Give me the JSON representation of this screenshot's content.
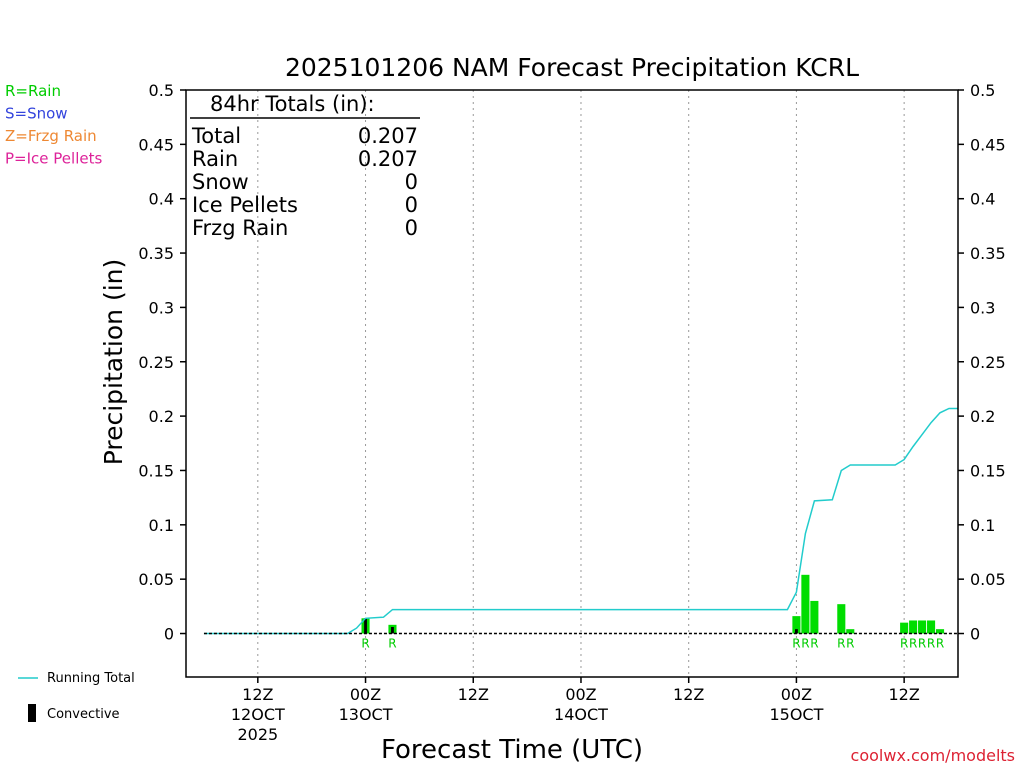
{
  "chart_data": {
    "type": "bar",
    "title": "2025101206 NAM Forecast Precipitation KCRL",
    "xlabel": "Forecast Time (UTC)",
    "ylabel": "Precipitation (in)",
    "ylim": [
      -0.04,
      0.5
    ],
    "y_ticks": [
      "0",
      "0.05",
      "0.1",
      "0.15",
      "0.2",
      "0.25",
      "0.3",
      "0.35",
      "0.4",
      "0.45",
      "0.5"
    ],
    "x_range_hours": [
      -2,
      84
    ],
    "x_ticks": [
      {
        "hour": 6,
        "l1": "12Z",
        "l2": "12OCT",
        "l3": "2025"
      },
      {
        "hour": 18,
        "l1": "00Z",
        "l2": "13OCT",
        "l3": ""
      },
      {
        "hour": 30,
        "l1": "12Z",
        "l2": "",
        "l3": ""
      },
      {
        "hour": 42,
        "l1": "00Z",
        "l2": "14OCT",
        "l3": ""
      },
      {
        "hour": 54,
        "l1": "12Z",
        "l2": "",
        "l3": ""
      },
      {
        "hour": 66,
        "l1": "00Z",
        "l2": "15OCT",
        "l3": ""
      },
      {
        "hour": 78,
        "l1": "12Z",
        "l2": "",
        "l3": ""
      }
    ],
    "legend_types": [
      {
        "label": "R=Rain",
        "color": "#00cc00"
      },
      {
        "label": "S=Snow",
        "color": "#3344dd"
      },
      {
        "label": "Z=Frzg Rain",
        "color": "#ee8833"
      },
      {
        "label": "P=Ice Pellets",
        "color": "#dd2299"
      }
    ],
    "legend_series": {
      "running_total": "Running Total",
      "convective": "Convective"
    },
    "colors": {
      "rain": "#00dd00",
      "convective": "#000000",
      "running_total": "#22cccc"
    },
    "bars": [
      {
        "hour": 18,
        "value": 0.014,
        "conv": 0.014,
        "type": "R"
      },
      {
        "hour": 21,
        "value": 0.008,
        "conv": 0.006,
        "type": "R"
      },
      {
        "hour": 66,
        "value": 0.016,
        "conv": 0.004,
        "type": "R"
      },
      {
        "hour": 67,
        "value": 0.054,
        "conv": 0.0,
        "type": "R"
      },
      {
        "hour": 68,
        "value": 0.03,
        "conv": 0.0,
        "type": "R"
      },
      {
        "hour": 71,
        "value": 0.027,
        "conv": 0.0,
        "type": "R"
      },
      {
        "hour": 72,
        "value": 0.004,
        "conv": 0.0,
        "type": "R"
      },
      {
        "hour": 78,
        "value": 0.01,
        "conv": 0.0,
        "type": "R"
      },
      {
        "hour": 79,
        "value": 0.012,
        "conv": 0.0,
        "type": "R"
      },
      {
        "hour": 80,
        "value": 0.012,
        "conv": 0.0,
        "type": "R"
      },
      {
        "hour": 81,
        "value": 0.012,
        "conv": 0.0,
        "type": "R"
      },
      {
        "hour": 82,
        "value": 0.004,
        "conv": 0.0,
        "type": "R"
      }
    ],
    "running_total": {
      "x": [
        0,
        16,
        17,
        18,
        20,
        21,
        65,
        66,
        67,
        68,
        70,
        71,
        72,
        77,
        78,
        79,
        80,
        81,
        82,
        83,
        84
      ],
      "y": [
        0,
        0,
        0.005,
        0.014,
        0.015,
        0.022,
        0.022,
        0.038,
        0.092,
        0.122,
        0.123,
        0.15,
        0.155,
        0.155,
        0.16,
        0.172,
        0.183,
        0.194,
        0.203,
        0.207,
        0.207
      ]
    },
    "totals_box": {
      "header": "84hr Totals (in):",
      "rows": [
        {
          "label": "Total",
          "value": "0.207"
        },
        {
          "label": "Rain",
          "value": "0.207"
        },
        {
          "label": "Snow",
          "value": "0"
        },
        {
          "label": "Ice Pellets",
          "value": "0"
        },
        {
          "label": "Frzg Rain",
          "value": "0"
        }
      ]
    },
    "watermark": "coolwx.com/modelts"
  }
}
